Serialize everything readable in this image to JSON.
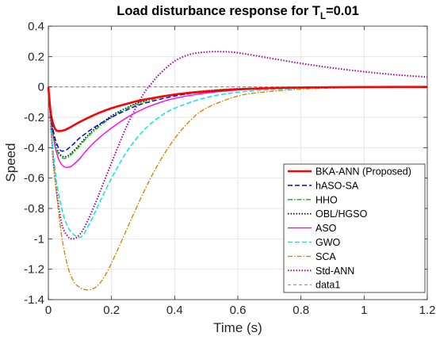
{
  "chart_data": {
    "type": "line",
    "title": {
      "prefix": "Load disturbance response for T",
      "subscript": "L",
      "suffix": "=0.01"
    },
    "xlabel": "Time (s)",
    "ylabel": "Speed",
    "xlim": [
      0,
      1.2
    ],
    "ylim": [
      -1.4,
      0.4
    ],
    "xticks": [
      0,
      0.2,
      0.4,
      0.6,
      0.8,
      1,
      1.2
    ],
    "xtick_labels": [
      "0",
      "0.2",
      "0.4",
      "0.6",
      "0.8",
      "1",
      "1.2"
    ],
    "yticks": [
      0.4,
      0.2,
      0,
      -0.2,
      -0.4,
      -0.6,
      -0.8,
      -1,
      -1.2,
      -1.4
    ],
    "ytick_labels": [
      "0.4",
      "0.2",
      "0",
      "-0.2",
      "-0.4",
      "-0.6",
      "-0.8",
      "-1",
      "-1.2",
      "-1.4"
    ],
    "grid": true,
    "legend_position": "bottom-right",
    "series": [
      {
        "name": "BKA-ANN (Proposed)",
        "color": "#ff0000",
        "dash": "solid",
        "width": 2.6,
        "x": [
          0,
          0.005,
          0.01,
          0.02,
          0.03,
          0.05,
          0.07,
          0.1,
          0.15,
          0.2,
          0.25,
          0.3,
          0.4,
          0.5,
          0.6,
          0.7,
          0.8,
          0.9,
          1.0,
          1.1,
          1.2
        ],
        "y": [
          0,
          -0.12,
          -0.2,
          -0.27,
          -0.29,
          -0.285,
          -0.265,
          -0.23,
          -0.18,
          -0.14,
          -0.11,
          -0.085,
          -0.05,
          -0.03,
          -0.016,
          -0.008,
          -0.004,
          -0.002,
          -0.001,
          0,
          0
        ]
      },
      {
        "name": "hASO-SA",
        "color": "#0000ff",
        "dash": "6,3",
        "width": 1.5,
        "x": [
          0,
          0.005,
          0.01,
          0.02,
          0.03,
          0.04,
          0.05,
          0.06,
          0.08,
          0.1,
          0.15,
          0.2,
          0.25,
          0.3,
          0.4,
          0.5,
          0.6,
          0.7,
          0.8,
          0.9,
          1.0,
          1.1,
          1.2
        ],
        "y": [
          0,
          -0.13,
          -0.22,
          -0.33,
          -0.39,
          -0.42,
          -0.42,
          -0.41,
          -0.375,
          -0.335,
          -0.26,
          -0.2,
          -0.15,
          -0.11,
          -0.06,
          -0.03,
          -0.015,
          -0.008,
          -0.004,
          -0.002,
          -0.001,
          0,
          0
        ]
      },
      {
        "name": "HHO",
        "color": "#00cc00",
        "dash": "6,2,1.5,2",
        "width": 1.5,
        "x": [
          0,
          0.005,
          0.01,
          0.02,
          0.03,
          0.04,
          0.05,
          0.06,
          0.07,
          0.09,
          0.12,
          0.15,
          0.2,
          0.25,
          0.3,
          0.4,
          0.5,
          0.6,
          0.7,
          0.8,
          0.9,
          1.0,
          1.1,
          1.2
        ],
        "y": [
          0,
          -0.14,
          -0.24,
          -0.36,
          -0.43,
          -0.46,
          -0.47,
          -0.465,
          -0.45,
          -0.41,
          -0.34,
          -0.28,
          -0.2,
          -0.14,
          -0.1,
          -0.05,
          -0.025,
          -0.012,
          -0.006,
          -0.003,
          -0.001,
          0,
          0,
          0
        ]
      },
      {
        "name": "OBL/HGSO",
        "color": "#000000",
        "dash": "1.5,2",
        "width": 1.6,
        "x": [
          0,
          0.005,
          0.01,
          0.02,
          0.03,
          0.04,
          0.05,
          0.06,
          0.07,
          0.09,
          0.12,
          0.15,
          0.2,
          0.25,
          0.3,
          0.4,
          0.5,
          0.6,
          0.7,
          0.8,
          0.9,
          1.0,
          1.1,
          1.2
        ],
        "y": [
          0,
          -0.14,
          -0.24,
          -0.35,
          -0.42,
          -0.45,
          -0.46,
          -0.455,
          -0.44,
          -0.4,
          -0.33,
          -0.27,
          -0.19,
          -0.135,
          -0.095,
          -0.05,
          -0.025,
          -0.012,
          -0.006,
          -0.003,
          -0.001,
          0,
          0,
          0
        ]
      },
      {
        "name": "ASO",
        "color": "#ff00ff",
        "dash": "solid",
        "width": 1.4,
        "x": [
          0,
          0.005,
          0.01,
          0.02,
          0.03,
          0.04,
          0.05,
          0.06,
          0.07,
          0.08,
          0.1,
          0.12,
          0.15,
          0.2,
          0.25,
          0.3,
          0.35,
          0.4,
          0.5,
          0.6,
          0.7,
          0.8,
          0.9,
          1.0,
          1.1,
          1.2
        ],
        "y": [
          0,
          -0.14,
          -0.25,
          -0.38,
          -0.46,
          -0.505,
          -0.525,
          -0.53,
          -0.525,
          -0.51,
          -0.47,
          -0.42,
          -0.355,
          -0.27,
          -0.2,
          -0.145,
          -0.105,
          -0.075,
          -0.04,
          -0.02,
          -0.01,
          -0.005,
          -0.002,
          -0.001,
          0,
          0
        ]
      },
      {
        "name": "GWO",
        "color": "#00eaea",
        "dash": "6,3",
        "width": 1.5,
        "x": [
          0,
          0.01,
          0.02,
          0.03,
          0.05,
          0.07,
          0.09,
          0.1,
          0.11,
          0.12,
          0.14,
          0.16,
          0.2,
          0.25,
          0.3,
          0.35,
          0.4,
          0.5,
          0.6,
          0.7,
          0.8,
          0.9,
          1.0,
          1.1,
          1.2
        ],
        "y": [
          0,
          -0.3,
          -0.52,
          -0.68,
          -0.86,
          -0.95,
          -0.985,
          -0.99,
          -0.975,
          -0.94,
          -0.86,
          -0.77,
          -0.6,
          -0.42,
          -0.29,
          -0.2,
          -0.14,
          -0.07,
          -0.035,
          -0.018,
          -0.009,
          -0.004,
          -0.002,
          -0.001,
          0
        ]
      },
      {
        "name": "SCA",
        "color": "#e08000",
        "dash": "6,2,1.5,2",
        "width": 1.4,
        "x": [
          0,
          0.01,
          0.02,
          0.04,
          0.06,
          0.08,
          0.1,
          0.12,
          0.14,
          0.16,
          0.18,
          0.2,
          0.25,
          0.3,
          0.35,
          0.4,
          0.45,
          0.5,
          0.6,
          0.7,
          0.8,
          0.9,
          1.0,
          1.1,
          1.2
        ],
        "y": [
          0,
          -0.32,
          -0.58,
          -0.95,
          -1.17,
          -1.28,
          -1.32,
          -1.335,
          -1.33,
          -1.3,
          -1.24,
          -1.16,
          -0.93,
          -0.7,
          -0.5,
          -0.34,
          -0.22,
          -0.14,
          -0.06,
          -0.03,
          -0.015,
          -0.007,
          -0.003,
          -0.001,
          0
        ]
      },
      {
        "name": "Std-ANN",
        "color": "#aa00aa",
        "dash": "1.5,2",
        "width": 2.0,
        "x": [
          0,
          0.01,
          0.02,
          0.04,
          0.06,
          0.08,
          0.1,
          0.12,
          0.15,
          0.2,
          0.25,
          0.3,
          0.33,
          0.35,
          0.4,
          0.45,
          0.5,
          0.55,
          0.6,
          0.7,
          0.8,
          0.9,
          1.0,
          1.1,
          1.2
        ],
        "y": [
          0,
          -0.32,
          -0.58,
          -0.88,
          -0.98,
          -1.0,
          -0.97,
          -0.9,
          -0.76,
          -0.5,
          -0.25,
          -0.05,
          0.03,
          0.08,
          0.17,
          0.215,
          0.23,
          0.232,
          0.225,
          0.19,
          0.155,
          0.125,
          0.1,
          0.08,
          0.065
        ]
      },
      {
        "name": "data1",
        "color": "#808080",
        "dash": "4,3",
        "width": 1.0,
        "x": [
          0,
          1.2
        ],
        "y": [
          0,
          0
        ]
      }
    ]
  }
}
